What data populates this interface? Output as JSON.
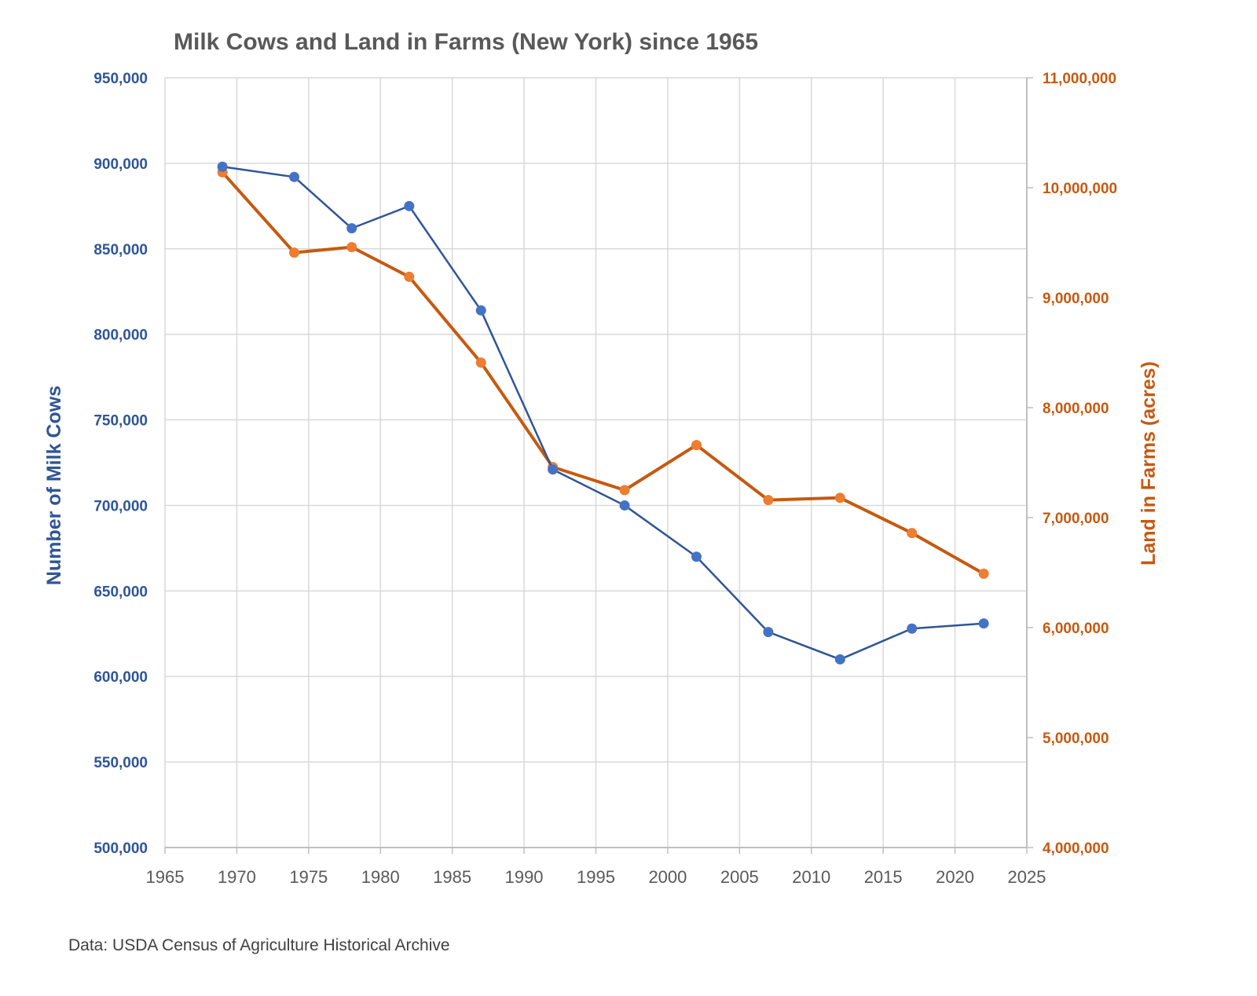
{
  "chart_data": {
    "type": "line",
    "title": "Milk Cows and Land in Farms (New York) since 1965",
    "xlabel": "",
    "ylabel_left": "Number of Milk Cows",
    "ylabel_right": "Land in Farms (acres)",
    "xlim": [
      1965,
      2025
    ],
    "x_ticks": [
      "1965",
      "1970",
      "1975",
      "1980",
      "1985",
      "1990",
      "1995",
      "2000",
      "2005",
      "2010",
      "2015",
      "2020",
      "2025"
    ],
    "ylim_left": [
      500000,
      950000
    ],
    "y_ticks_left": [
      "500,000",
      "550,000",
      "600,000",
      "650,000",
      "700,000",
      "750,000",
      "800,000",
      "850,000",
      "900,000",
      "950,000"
    ],
    "ylim_right": [
      4000000,
      11000000
    ],
    "y_ticks_right": [
      "4,000,000",
      "5,000,000",
      "6,000,000",
      "7,000,000",
      "8,000,000",
      "9,000,000",
      "10,000,000",
      "11,000,000"
    ],
    "grid": true,
    "x": [
      1969,
      1974,
      1978,
      1982,
      1987,
      1992,
      1997,
      2002,
      2007,
      2012,
      2017,
      2022
    ],
    "series": [
      {
        "name": "Number of Milk Cows",
        "axis": "left",
        "color": "#2f5597",
        "marker_color": "#4472c4",
        "values": [
          898000,
          892000,
          862000,
          875000,
          814000,
          721000,
          700000,
          670000,
          626000,
          610000,
          628000,
          631000
        ]
      },
      {
        "name": "Land in Farms (acres)",
        "axis": "right",
        "color": "#c55a11",
        "marker_color": "#ed7d31",
        "values": [
          10140000,
          9410000,
          9460000,
          9190000,
          8410000,
          7460000,
          7250000,
          7660000,
          7160000,
          7180000,
          6860000,
          6490000
        ]
      }
    ]
  },
  "source": "Data: USDA Census of Agriculture Historical Archive"
}
